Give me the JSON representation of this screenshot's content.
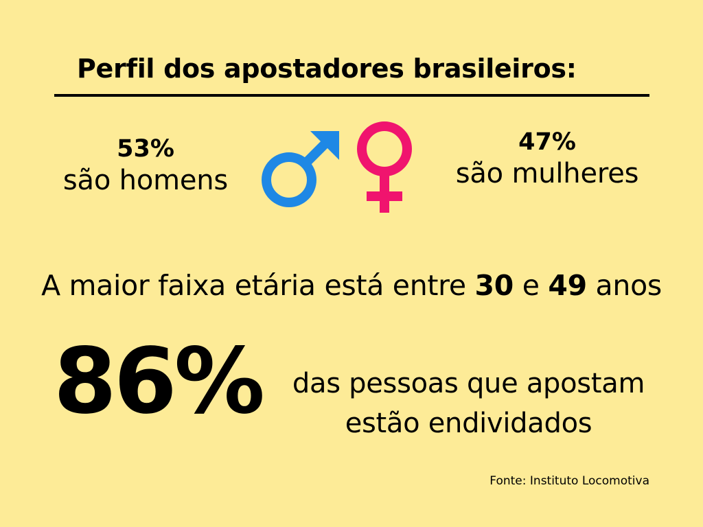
{
  "title": "Perfil dos apostadores brasileiros:",
  "men": {
    "percent": "53%",
    "label": "são homens",
    "icon": "male-symbol-icon",
    "color": "#1e88e5"
  },
  "women": {
    "percent": "47%",
    "label": "são mulheres",
    "icon": "female-symbol-icon",
    "color": "#f0146e"
  },
  "age": {
    "prefix": "A maior faixa etária está entre ",
    "from": "30",
    "connector": " e ",
    "to": "49",
    "suffix": " anos"
  },
  "debt": {
    "percent": "86%",
    "line1": "das pessoas que apostam",
    "line2": "estão endividados"
  },
  "source": "Fonte: Instituto Locomotiva",
  "colors": {
    "background": "#fdeb97",
    "text": "#000000"
  }
}
